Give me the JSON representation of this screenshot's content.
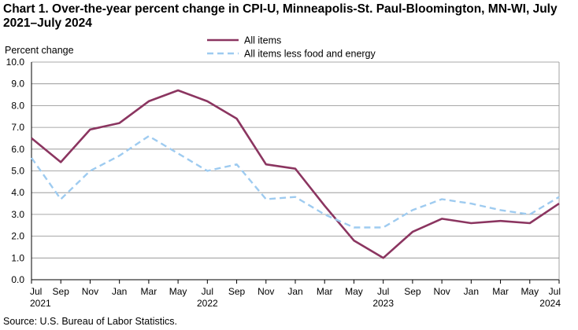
{
  "title": "Chart 1. Over-the-year percent change in CPI-U, Minneapolis-St. Paul-Bloomington, MN-WI, July 2021–July 2024",
  "source": "Source: U.S. Bureau of Labor Statistics.",
  "chart_data": {
    "type": "line",
    "ylabel": "Percent change",
    "xlabel": "",
    "ylim": [
      0,
      10
    ],
    "yticks": [
      "0.0",
      "1.0",
      "2.0",
      "3.0",
      "4.0",
      "5.0",
      "6.0",
      "7.0",
      "8.0",
      "9.0",
      "10.0"
    ],
    "grid": true,
    "legend_position": "top-center",
    "x_tick_labels": [
      "Jul",
      "Sep",
      "Nov",
      "Jan",
      "Mar",
      "May",
      "Jul",
      "Sep",
      "Nov",
      "Jan",
      "Mar",
      "May",
      "Jul",
      "Sep",
      "Nov",
      "Jan",
      "Mar",
      "May",
      "Jul"
    ],
    "x_year_labels": [
      {
        "index": 0,
        "label": "2021"
      },
      {
        "index": 6,
        "label": "2022"
      },
      {
        "index": 12,
        "label": "2023"
      },
      {
        "index": 18,
        "label": "2024"
      }
    ],
    "categories": [
      "Jul 2021",
      "Sep 2021",
      "Nov 2021",
      "Jan 2022",
      "Mar 2022",
      "May 2022",
      "Jul 2022",
      "Sep 2022",
      "Nov 2022",
      "Jan 2023",
      "Mar 2023",
      "May 2023",
      "Jul 2023",
      "Sep 2023",
      "Nov 2023",
      "Jan 2024",
      "Mar 2024",
      "May 2024",
      "Jul 2024"
    ],
    "series": [
      {
        "name": "All items",
        "color": "#8b3560",
        "style": "solid",
        "values": [
          6.5,
          5.4,
          6.9,
          7.2,
          8.2,
          8.7,
          8.2,
          7.4,
          5.3,
          5.1,
          3.4,
          1.8,
          1.0,
          2.2,
          2.8,
          2.6,
          2.7,
          2.6,
          3.5
        ]
      },
      {
        "name": "All items less food and energy",
        "color": "#9ecbf0",
        "style": "dashed",
        "values": [
          5.6,
          3.7,
          5.0,
          5.7,
          6.6,
          5.8,
          5.0,
          5.3,
          3.7,
          3.8,
          3.0,
          2.4,
          2.4,
          3.2,
          3.7,
          3.5,
          3.2,
          3.0,
          3.8
        ]
      }
    ]
  }
}
